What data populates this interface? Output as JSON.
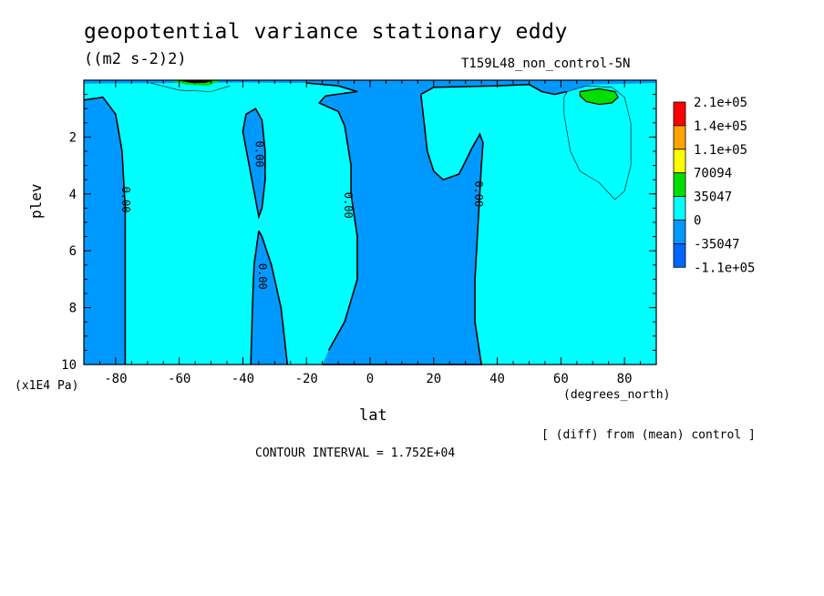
{
  "chart_data": {
    "type": "heatmap",
    "title": "geopotential variance stationary eddy",
    "units": "((m2 s-2)2)",
    "run_label": "T159L48_non_control-5N",
    "xlabel": "lat",
    "x_units": "(degrees_north)",
    "ylabel": "plev",
    "y_units": "(x1E4 Pa)",
    "xlim": [
      -90,
      90
    ],
    "ylim": [
      10,
      0
    ],
    "x_ticks": [
      "-80",
      "-60",
      "-40",
      "-20",
      "0",
      "20",
      "40",
      "60",
      "80"
    ],
    "y_ticks": [
      "2",
      "4",
      "6",
      "8",
      "10"
    ],
    "contour_interval_text": "CONTOUR INTERVAL = 1.752E+04",
    "note": "[ (diff) from (mean) control ]",
    "contour_labels": [
      {
        "text": "0.00",
        "lat": -77,
        "plev": 4.2
      },
      {
        "text": "0.00",
        "lat": -35,
        "plev": 2.6
      },
      {
        "text": "0.00",
        "lat": -34,
        "plev": 6.9
      },
      {
        "text": "0.00",
        "lat": -7,
        "plev": 4.4
      },
      {
        "text": "0.00",
        "lat": 34,
        "plev": 4.0
      }
    ],
    "legend": {
      "levels": [
        "2.1e+05",
        "1.4e+05",
        "1.1e+05",
        "70094",
        "35047",
        "0",
        "-35047",
        "-1.1e+05"
      ],
      "colors": [
        "#ff0000",
        "#ffa500",
        "#ffff00",
        "#00e000",
        "#00ffff",
        "#0099ff",
        "#0066ff"
      ]
    },
    "fill_colors": {
      "positive": "#00ffff",
      "negative": "#0099ff",
      "high": "#00e000",
      "strong_negative": "#0066ff"
    },
    "negative_regions": [
      {
        "name": "west-edge",
        "lat": [
          -90,
          -77
        ],
        "plev": [
          0.7,
          10
        ]
      },
      {
        "name": "sh-tongue",
        "lat": [
          -38,
          -28
        ],
        "plev": [
          1.0,
          10
        ]
      },
      {
        "name": "tropical-band",
        "lat": [
          -16,
          35
        ],
        "plev": [
          0.4,
          10
        ]
      }
    ],
    "positive_peak": {
      "lat": 72,
      "plev": 0.7
    }
  }
}
